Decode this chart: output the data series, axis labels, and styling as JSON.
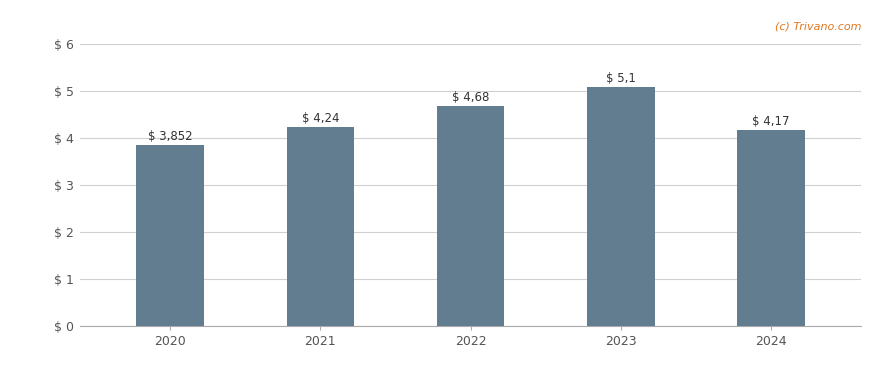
{
  "categories": [
    "2020",
    "2021",
    "2022",
    "2023",
    "2024"
  ],
  "values": [
    3.852,
    4.24,
    4.68,
    5.1,
    4.17
  ],
  "labels": [
    "$ 3,852",
    "$ 4,24",
    "$ 4,68",
    "$ 5,1",
    "$ 4,17"
  ],
  "bar_color": "#617d8f",
  "background_color": "#ffffff",
  "ylim": [
    0,
    6
  ],
  "yticks": [
    0,
    1,
    2,
    3,
    4,
    5,
    6
  ],
  "ytick_labels": [
    "$ 0",
    "$ 1",
    "$ 2",
    "$ 3",
    "$ 4",
    "$ 5",
    "$ 6"
  ],
  "grid_color": "#d0d0d0",
  "watermark": "(c) Trivano.com",
  "watermark_color": "#e07820",
  "label_fontsize": 8.5,
  "tick_fontsize": 9,
  "bar_width": 0.45
}
